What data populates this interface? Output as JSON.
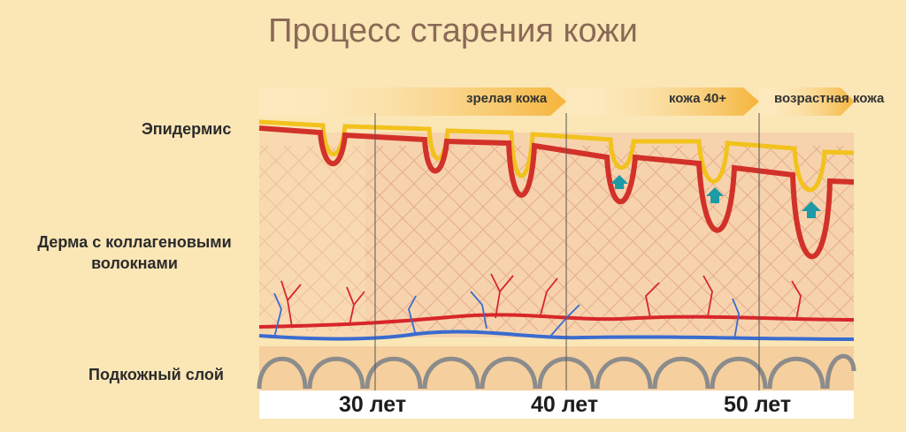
{
  "title": "Процесс старения кожи",
  "layers": {
    "epidermis": "Эпидермис",
    "dermis_line1": "Дерма с коллагеновыми",
    "dermis_line2": "волокнами",
    "subcutaneous": "Подкожный слой"
  },
  "stages": [
    "зрелая кожа",
    "кожа 40+",
    "возрастная кожа"
  ],
  "ages": [
    "30 лет",
    "40 лет",
    "50 лет"
  ],
  "colors": {
    "background": "#fbe6b6",
    "epidermis_top": "#f2c21d",
    "epidermis_red": "#d2312a",
    "dermis": "#f6d0a8",
    "vein": "#3a6bd0",
    "artery": "#d8262a",
    "arrow_marker": "#1d9aa6"
  }
}
